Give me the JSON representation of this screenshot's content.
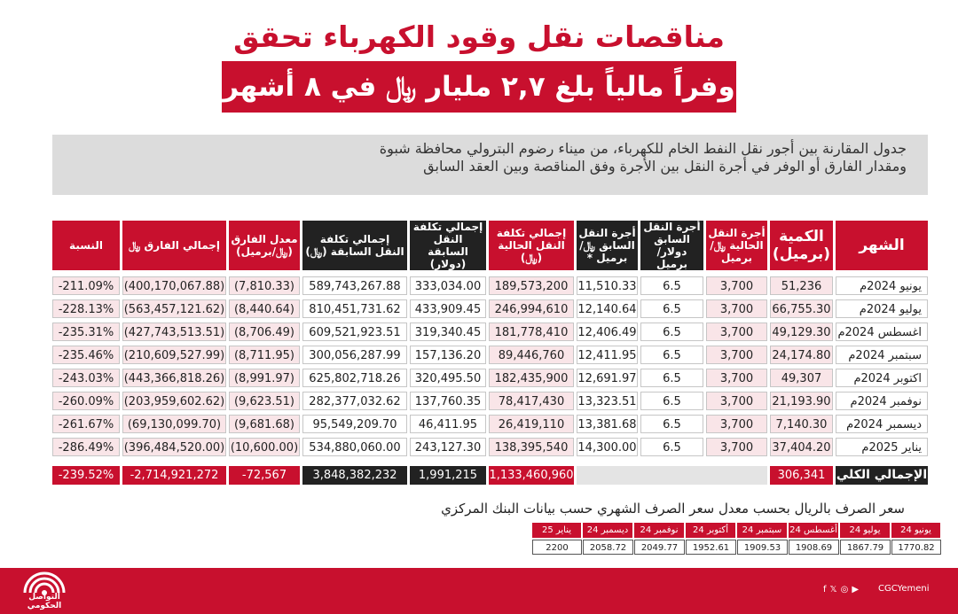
{
  "title_line1": "مناقصات نقل وقود الكهرباء تحقق",
  "title_line2": "وفراً مالياً بلغ ٢,٧ مليار ﷼ في ٨ أشهر",
  "description": [
    "جدول المقارنة بين أجور نقل النفط الخام للكهرباء، من ميناء رضوم البترولي محافظة شبوة",
    "ومقدار الفارق أو الوفر في أجرة النقل بين الأجرة وفق المناقصة وبين العقد السابق"
  ],
  "headers": {
    "month": "الشهر",
    "quantity": "الكمية (برميل)",
    "current_fare": "أجرة النقل الحالية ﷼/برميل",
    "prev_fare_usd": "أجرة النقل السابق دولار/برميل",
    "prev_fare_yer": "أجرة النقل السابق ﷼/برميل *",
    "total_current": "إجمالي تكلفة النقل الحالية (﷼)",
    "total_prev_usd": "إجمالي تكلفة النقل السابقة (دولار)",
    "total_prev_yer": "إجمالي تكلفة النقل السابقة (﷼)",
    "diff_rate": "معدل الفارق (﷼/برميل)",
    "diff_total": "إجمالي الفارق ﷼",
    "ratio": "النسبة"
  },
  "rows": [
    {
      "month": "يونيو 2024م",
      "qty": "51,236",
      "fare": "3,700",
      "prev_usd": "6.5",
      "prev_yer": "11,510.33",
      "total_cur": "189,573,200",
      "prev_total_usd": "333,034.00",
      "prev_total_yer": "589,743,267.88",
      "diff_rate": "(7,810.33)",
      "diff_total": "(400,170,067.88)",
      "ratio": "-211.09%"
    },
    {
      "month": "يوليو 2024م",
      "qty": "66,755.30",
      "fare": "3,700",
      "prev_usd": "6.5",
      "prev_yer": "12,140.64",
      "total_cur": "246,994,610",
      "prev_total_usd": "433,909.45",
      "prev_total_yer": "810,451,731.62",
      "diff_rate": "(8,440.64)",
      "diff_total": "(563,457,121.62)",
      "ratio": "-228.13%"
    },
    {
      "month": "اغسطس 2024م",
      "qty": "49,129.30",
      "fare": "3,700",
      "prev_usd": "6.5",
      "prev_yer": "12,406.49",
      "total_cur": "181,778,410",
      "prev_total_usd": "319,340.45",
      "prev_total_yer": "609,521,923.51",
      "diff_rate": "(8,706.49)",
      "diff_total": "(427,743,513.51)",
      "ratio": "-235.31%"
    },
    {
      "month": "سبتمبر 2024م",
      "qty": "24,174.80",
      "fare": "3,700",
      "prev_usd": "6.5",
      "prev_yer": "12,411.95",
      "total_cur": "89,446,760",
      "prev_total_usd": "157,136.20",
      "prev_total_yer": "300,056,287.99",
      "diff_rate": "(8,711.95)",
      "diff_total": "(210,609,527.99)",
      "ratio": "-235.46%"
    },
    {
      "month": "اكتوبر 2024م",
      "qty": "49,307",
      "fare": "3,700",
      "prev_usd": "6.5",
      "prev_yer": "12,691.97",
      "total_cur": "182,435,900",
      "prev_total_usd": "320,495.50",
      "prev_total_yer": "625,802,718.26",
      "diff_rate": "(8,991.97)",
      "diff_total": "(443,366,818.26)",
      "ratio": "-243.03%"
    },
    {
      "month": "نوفمبر 2024م",
      "qty": "21,193.90",
      "fare": "3,700",
      "prev_usd": "6.5",
      "prev_yer": "13,323.51",
      "total_cur": "78,417,430",
      "prev_total_usd": "137,760.35",
      "prev_total_yer": "282,377,032.62",
      "diff_rate": "(9,623.51)",
      "diff_total": "(203,959,602.62)",
      "ratio": "-260.09%"
    },
    {
      "month": "ديسمبر 2024م",
      "qty": "7,140.30",
      "fare": "3,700",
      "prev_usd": "6.5",
      "prev_yer": "13,381.68",
      "total_cur": "26,419,110",
      "prev_total_usd": "46,411.95",
      "prev_total_yer": "95,549,209.70",
      "diff_rate": "(9,681.68)",
      "diff_total": "(69,130,099.70)",
      "ratio": "-261.67%"
    },
    {
      "month": "يناير 2025م",
      "qty": "37,404.20",
      "fare": "3,700",
      "prev_usd": "6.5",
      "prev_yer": "14,300.00",
      "total_cur": "138,395,540",
      "prev_total_usd": "243,127.30",
      "prev_total_yer": "534,880,060.00",
      "diff_rate": "(10,600.00)",
      "diff_total": "(396,484,520.00)",
      "ratio": "-286.49%"
    }
  ],
  "totals": {
    "label": "الإجمالي الكلي",
    "qty": "306,341",
    "total_cur": "1,133,460,960",
    "prev_total_usd": "1,991,215",
    "prev_total_yer": "3,848,382,232",
    "diff_rate": "-72,567",
    "diff_total": "-2,714,921,272",
    "ratio": "-239.52%"
  },
  "fx_title": "سعر الصرف بالريال بحسب معدل سعر الصرف الشهري حسب بيانات البنك المركزي",
  "fx": [
    {
      "month": "يونيو 24",
      "rate": "1770.82"
    },
    {
      "month": "يوليو 24",
      "rate": "1867.79"
    },
    {
      "month": "أغسطس 24",
      "rate": "1908.69"
    },
    {
      "month": "سبتمبر 24",
      "rate": "1909.53"
    },
    {
      "month": "أكتوبر 24",
      "rate": "1952.61"
    },
    {
      "month": "نوفمبر 24",
      "rate": "2049.77"
    },
    {
      "month": "ديسمبر 24",
      "rate": "2058.72"
    },
    {
      "month": "يناير 25",
      "rate": "2200"
    }
  ],
  "footer": {
    "logo_text": "التواصل الحكومي",
    "handle": "CGCYemeni",
    "icons": [
      "x-icon",
      "instagram-icon",
      "facebook-icon",
      "youtube-icon"
    ]
  }
}
